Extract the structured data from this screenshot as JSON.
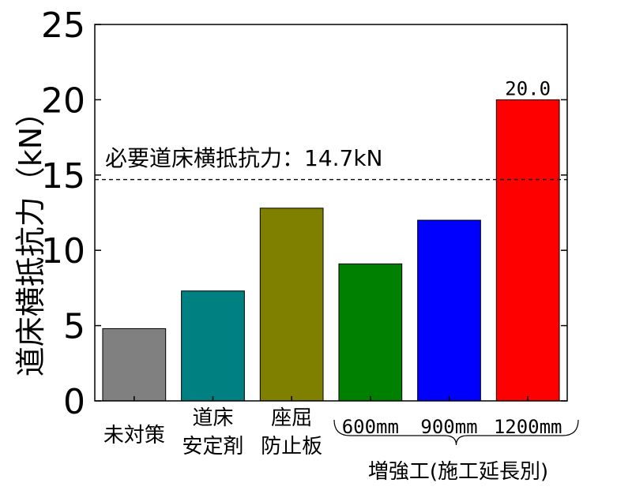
{
  "chart_data": {
    "type": "bar",
    "ylabel": "道床横抵抗力（kN）",
    "ylim": [
      0,
      25
    ],
    "yticks": [
      0,
      5,
      10,
      15,
      20,
      25
    ],
    "grid": false,
    "categories": [
      [
        "未対策"
      ],
      [
        "道床",
        "安定剤"
      ],
      [
        "座屈",
        "防止板"
      ],
      [
        "600mm"
      ],
      [
        "900mm"
      ],
      [
        "1200mm"
      ]
    ],
    "values": [
      4.8,
      7.3,
      12.8,
      9.1,
      12.0,
      20.0
    ],
    "colors": [
      "#808080",
      "#008080",
      "#808000",
      "#008000",
      "#0000ff",
      "#ff0000"
    ],
    "data_labels": [
      null,
      null,
      null,
      null,
      null,
      "20.0"
    ],
    "reference_line": {
      "value": 14.7,
      "style": "dashed",
      "label": "必要道床横抵抗力：14.7kN"
    },
    "group_label": {
      "text": "増強工(施工延長別)",
      "from": 3,
      "to": 5
    }
  }
}
